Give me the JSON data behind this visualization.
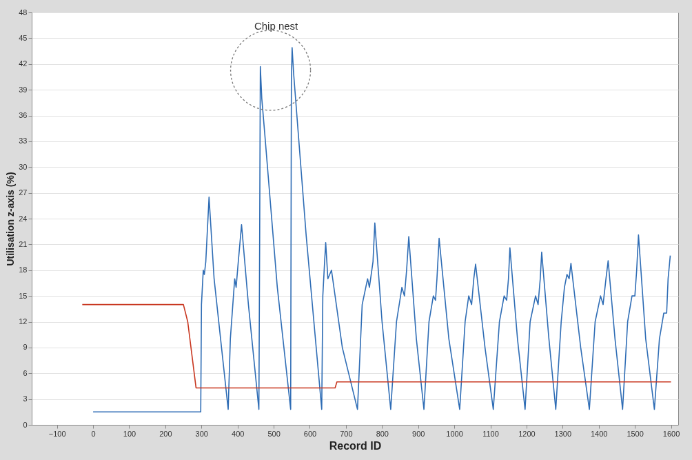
{
  "chart_data": {
    "type": "line",
    "xlabel": "Record ID",
    "ylabel": "Utilisation z-axis (%)",
    "xlim": [
      -170,
      1620
    ],
    "ylim": [
      0,
      48
    ],
    "xticks": [
      -100,
      0,
      100,
      200,
      300,
      400,
      500,
      600,
      700,
      800,
      900,
      1000,
      1100,
      1200,
      1300,
      1400,
      1500,
      1600
    ],
    "yticks": [
      0,
      3,
      6,
      9,
      12,
      15,
      18,
      21,
      24,
      27,
      30,
      33,
      36,
      39,
      42,
      45,
      48
    ],
    "grid": "y",
    "annotations": [
      "Chip nest"
    ],
    "series": [
      {
        "color": "#2f6db5",
        "x": [
          0,
          298,
          300,
          305,
          308,
          312,
          321,
          335,
          374,
          380,
          392,
          396,
          402,
          411,
          430,
          459,
          461,
          463,
          467,
          475,
          510,
          547,
          549,
          551,
          555,
          590,
          633,
          636,
          641,
          644,
          650,
          660,
          690,
          732,
          745,
          760,
          765,
          775,
          780,
          800,
          824,
          840,
          855,
          862,
          868,
          874,
          895,
          916,
          930,
          942,
          948,
          952,
          958,
          985,
          1015,
          1030,
          1040,
          1048,
          1054,
          1059,
          1085,
          1108,
          1125,
          1138,
          1145,
          1150,
          1154,
          1175,
          1196,
          1210,
          1225,
          1232,
          1238,
          1242,
          1262,
          1281,
          1296,
          1305,
          1312,
          1318,
          1323,
          1350,
          1374,
          1390,
          1405,
          1412,
          1420,
          1426,
          1445,
          1466,
          1480,
          1492,
          1500,
          1505,
          1510,
          1530,
          1554,
          1568,
          1580,
          1588,
          1592,
          1598
        ],
        "values": [
          1.5,
          1.5,
          14,
          18,
          17.5,
          19,
          26.5,
          17,
          1.8,
          10,
          17,
          16,
          19,
          23.3,
          14,
          1.8,
          20,
          41.7,
          38,
          34,
          16,
          1.8,
          40,
          43.9,
          41,
          22,
          1.8,
          15,
          19,
          21.2,
          17,
          18,
          9,
          1.8,
          14,
          17,
          16,
          19,
          23.5,
          12,
          1.8,
          12,
          16,
          15,
          18,
          21.9,
          10,
          1.8,
          12,
          15,
          14.5,
          17,
          21.7,
          10,
          1.8,
          12,
          15,
          14,
          17,
          18.7,
          9,
          1.8,
          12,
          15,
          14.5,
          17,
          20.6,
          10,
          1.8,
          12,
          15,
          14,
          17,
          20.1,
          10,
          1.8,
          12,
          16,
          17.5,
          17,
          18.8,
          9,
          1.8,
          12,
          15,
          14,
          17,
          19.1,
          10,
          1.8,
          12,
          15,
          15,
          18,
          22.1,
          10,
          1.8,
          10,
          13,
          13,
          17,
          19.7
        ]
      },
      {
        "color": "#c8361f",
        "x": [
          -30,
          250,
          262,
          285,
          670,
          675,
          1600
        ],
        "values": [
          14,
          14,
          12,
          4.3,
          4.3,
          5,
          5
        ]
      }
    ]
  }
}
